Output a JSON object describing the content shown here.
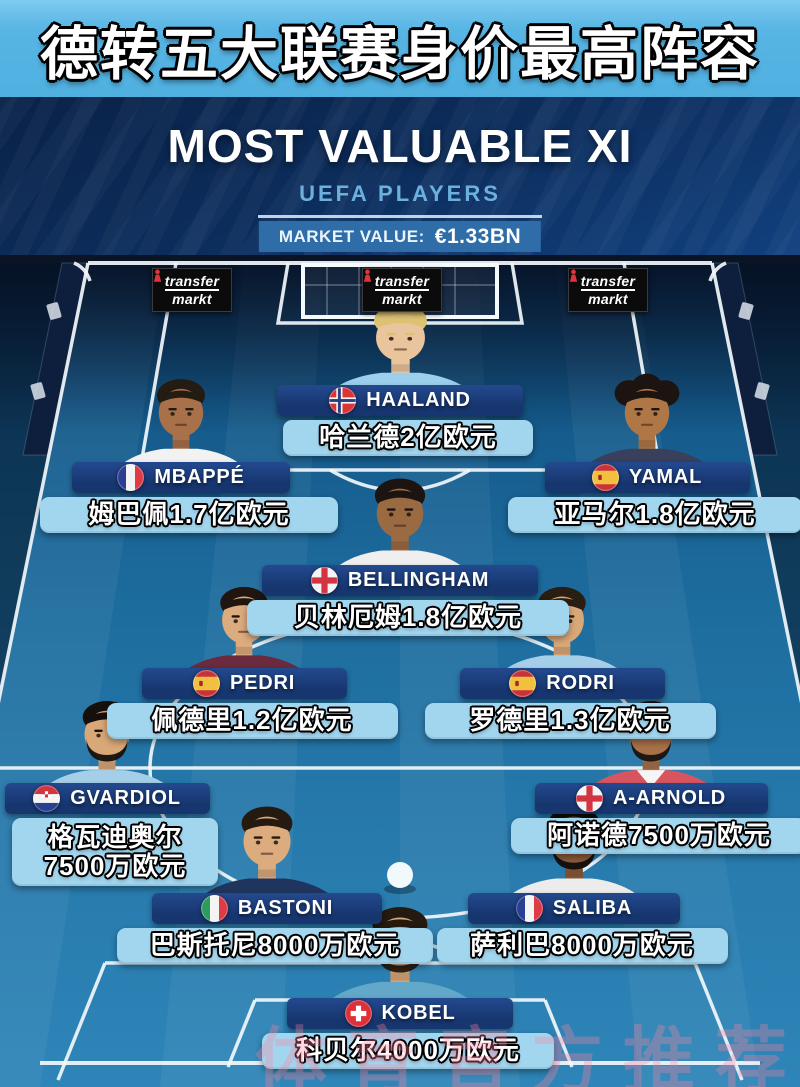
{
  "banner": {
    "title": "德转五大联赛身价最高阵容"
  },
  "header": {
    "title": "MOST VALUABLE XI",
    "subtitle": "UEFA PLAYERS",
    "market_value_label": "MARKET VALUE:",
    "market_value": "€1.33BN"
  },
  "branding": {
    "logo_line1": "transfer",
    "logo_line2": "markt"
  },
  "watermark": "体育官方推荐",
  "colors": {
    "banner": "#58b5e4",
    "header_bg": "#0c2c5a",
    "market_bar": "#2e6da8",
    "name_bar": "#17366f",
    "value_bar": "#a2d6ef",
    "pitch": "#1d6c9e",
    "accent_red": "#e2323c"
  },
  "players": [
    {
      "id": "haaland",
      "name": "HAALAND",
      "nation": "norway",
      "value": "哈兰德2亿欧元"
    },
    {
      "id": "mbappe",
      "name": "MBAPPÉ",
      "nation": "france",
      "value": "姆巴佩1.7亿欧元"
    },
    {
      "id": "yamal",
      "name": "YAMAL",
      "nation": "spain",
      "value": "亚马尔1.8亿欧元"
    },
    {
      "id": "bellingham",
      "name": "BELLINGHAM",
      "nation": "england",
      "value": "贝林厄姆1.8亿欧元"
    },
    {
      "id": "pedri",
      "name": "PEDRI",
      "nation": "spain",
      "value": "佩德里1.2亿欧元"
    },
    {
      "id": "rodri",
      "name": "RODRI",
      "nation": "spain",
      "value": "罗德里1.3亿欧元"
    },
    {
      "id": "gvardiol",
      "name": "GVARDIOL",
      "nation": "croatia",
      "value": "格瓦迪奥尔\n7500万欧元"
    },
    {
      "id": "aarnold",
      "name": "A-ARNOLD",
      "nation": "england",
      "value": "阿诺德7500万欧元"
    },
    {
      "id": "bastoni",
      "name": "BASTONI",
      "nation": "italy",
      "value": "巴斯托尼8000万欧元"
    },
    {
      "id": "saliba",
      "name": "SALIBA",
      "nation": "france",
      "value": "萨利巴8000万欧元"
    },
    {
      "id": "kobel",
      "name": "KOBEL",
      "nation": "switzerland",
      "value": "科贝尔4000万欧元"
    }
  ]
}
